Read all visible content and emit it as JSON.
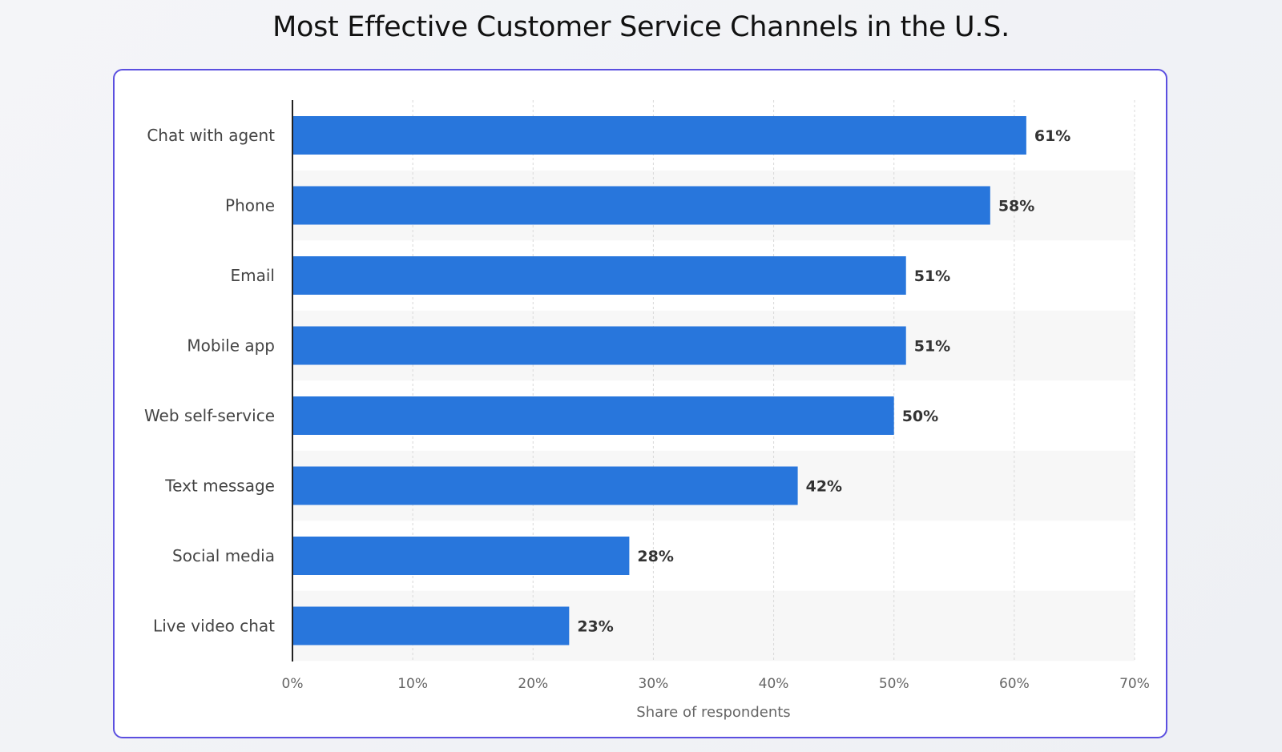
{
  "page": {
    "title": "Most Effective Customer Service Channels in the U.S."
  },
  "colors": {
    "bar": "#2876dc",
    "band": "#f7f7f7",
    "card_border": "#5b4fe0"
  },
  "chart_data": {
    "type": "bar",
    "orientation": "horizontal",
    "title": "Most Effective Customer Service Channels in the U.S.",
    "xlabel": "Share of respondents",
    "ylabel": "",
    "categories": [
      "Chat with agent",
      "Phone",
      "Email",
      "Mobile app",
      "Web self-service",
      "Text message",
      "Social media",
      "Live video chat"
    ],
    "values": [
      61,
      58,
      51,
      51,
      50,
      42,
      28,
      23
    ],
    "value_labels": [
      "61%",
      "58%",
      "51%",
      "51%",
      "50%",
      "42%",
      "28%",
      "23%"
    ],
    "xlim": [
      0,
      70
    ],
    "ticks": [
      0,
      10,
      20,
      30,
      40,
      50,
      60,
      70
    ],
    "tick_labels": [
      "0%",
      "10%",
      "20%",
      "30%",
      "40%",
      "50%",
      "60%",
      "70%"
    ],
    "grid": true,
    "alternating_bands": true
  }
}
